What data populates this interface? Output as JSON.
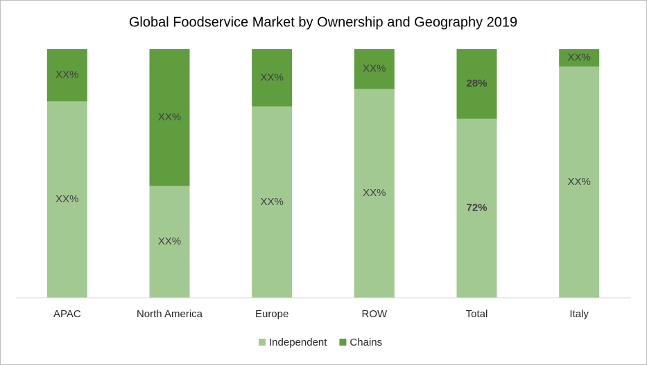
{
  "chart_data": {
    "type": "stacked_bar",
    "title": "Global Foodservice Market by Ownership and Geography 2019",
    "categories": [
      "APAC",
      "North America",
      "Europe",
      "ROW",
      "Total",
      "Italy"
    ],
    "series": [
      {
        "name": "Independent",
        "color": "#a3c993",
        "values": [
          79,
          45,
          77,
          84,
          72,
          93
        ],
        "value_labels": [
          "XX%",
          "XX%",
          "XX%",
          "XX%",
          "72%",
          "XX%"
        ]
      },
      {
        "name": "Chains",
        "color": "#5f9d3f",
        "values": [
          21,
          55,
          23,
          16,
          28,
          7
        ],
        "value_labels": [
          "XX%",
          "XX%",
          "XX%",
          "XX%",
          "28%",
          "XX%"
        ]
      }
    ],
    "ylim": [
      0,
      100
    ],
    "legend": "bottom"
  }
}
